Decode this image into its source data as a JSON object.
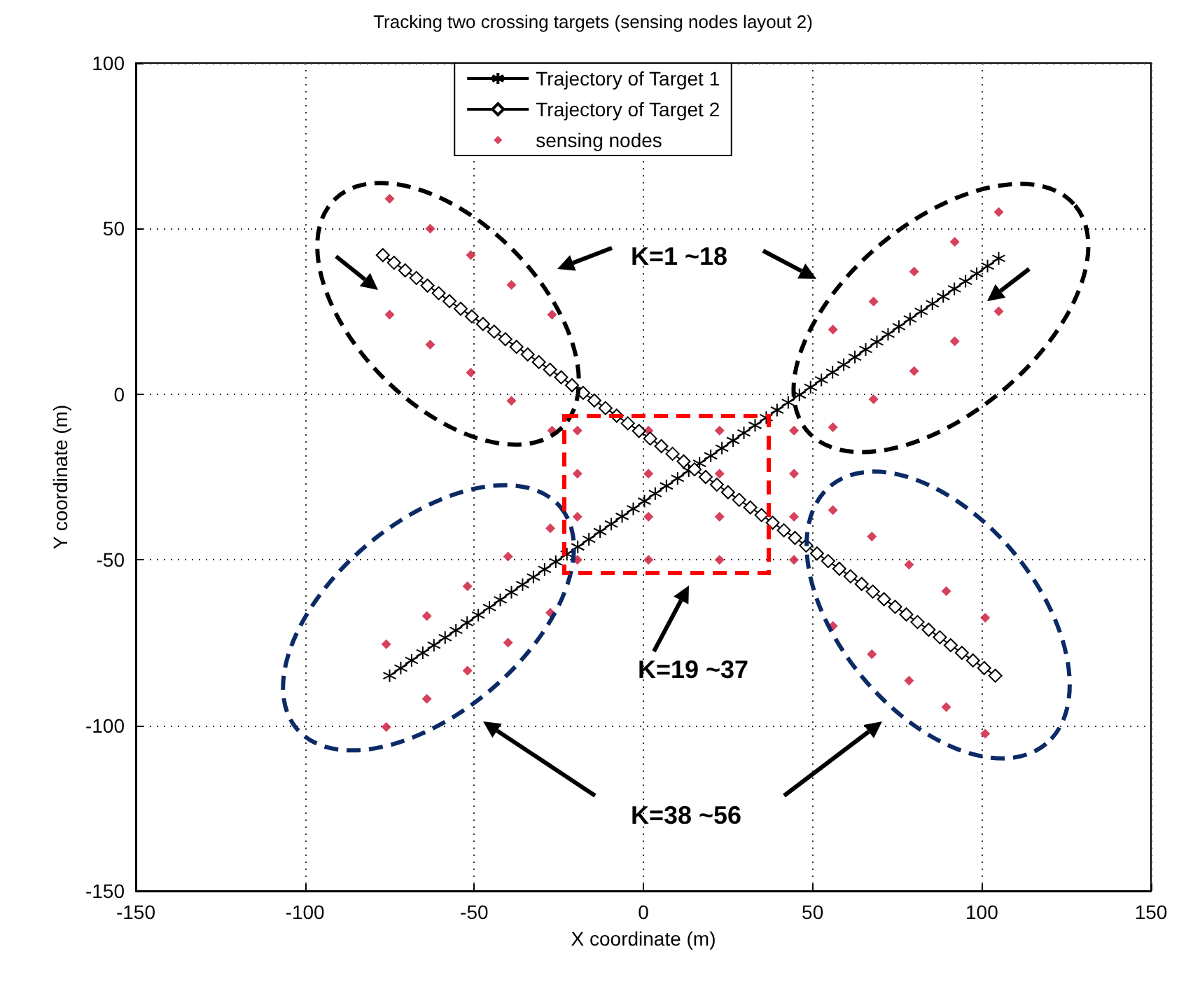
{
  "chart_data": {
    "type": "line",
    "title": "Tracking two crossing targets (sensing nodes layout 2)",
    "xlabel": "X coordinate (m)",
    "ylabel": "Y coordinate (m)",
    "xlim": [
      -150,
      150
    ],
    "xticks": [
      -150,
      -100,
      -50,
      0,
      50,
      100,
      150
    ],
    "ylim": [
      -150,
      100
    ],
    "yticks": [
      -150,
      -100,
      -50,
      0,
      50,
      100
    ],
    "grid": true,
    "legend": "top",
    "annotations": [
      "K=1 ~18",
      "K=19 ~37",
      "K=38 ~56"
    ],
    "series": [
      {
        "name": "Trajectory of Target 1",
        "color": "#000000",
        "marker": "cross",
        "line_style": "solid",
        "x": [
          -75,
          -71.7,
          -68.5,
          -65.2,
          -61.9,
          -58.6,
          -55.4,
          -52.1,
          -48.8,
          -45.5,
          -42.3,
          -39,
          -35.7,
          -32.5,
          -29.2,
          -25.9,
          -22.6,
          -19.4,
          -16.1,
          -12.8,
          -9.5,
          -6.3,
          -3,
          0.3,
          3.5,
          6.8,
          10.1,
          13.4,
          16.6,
          19.9,
          23.2,
          26.5,
          29.7,
          33,
          36.3,
          39.5,
          42.8,
          46.1,
          49.4,
          52.6,
          55.9,
          59.2,
          62.5,
          65.7,
          69,
          72.3,
          75.5,
          78.8,
          82.1,
          85.4,
          88.6,
          91.9,
          95.2,
          98.5,
          101.7,
          105
        ],
        "values": [
          -85,
          -82.7,
          -80.4,
          -78.1,
          -75.8,
          -73.5,
          -71.3,
          -69,
          -66.7,
          -64.4,
          -62.1,
          -59.8,
          -57.5,
          -55.2,
          -52.9,
          -50.6,
          -48.3,
          -46.1,
          -43.8,
          -41.5,
          -39.2,
          -36.9,
          -34.6,
          -32.3,
          -30,
          -27.7,
          -25.4,
          -23.1,
          -20.9,
          -18.6,
          -16.3,
          -14,
          -11.7,
          -9.4,
          -7.1,
          -4.8,
          -2.5,
          -0.2,
          2.1,
          4.3,
          6.6,
          8.9,
          11.2,
          13.5,
          15.8,
          18.1,
          20.4,
          22.7,
          25,
          27.3,
          29.5,
          31.8,
          34.1,
          36.4,
          38.7,
          41
        ]
      },
      {
        "name": "Trajectory of Target 2",
        "color": "#000000",
        "marker": "diamond",
        "line_style": "solid",
        "x": [
          -77,
          -73.7,
          -70.4,
          -67.1,
          -63.8,
          -60.5,
          -57.3,
          -54,
          -50.7,
          -47.4,
          -44.1,
          -40.8,
          -37.5,
          -34.2,
          -30.9,
          -27.6,
          -24.3,
          -21.1,
          -17.8,
          -14.5,
          -11.2,
          -7.9,
          -4.6,
          -1.3,
          2,
          5.3,
          8.6,
          11.9,
          15.1,
          18.4,
          21.7,
          25,
          28.3,
          31.6,
          34.9,
          38.2,
          41.5,
          44.8,
          48.1,
          51.3,
          54.6,
          57.9,
          61.2,
          64.5,
          67.8,
          71.1,
          74.4,
          77.7,
          81,
          84.3,
          87.6,
          90.8,
          94.1,
          97.4,
          100.7,
          104
        ],
        "values": [
          42,
          39.7,
          37.4,
          35.1,
          32.8,
          30.5,
          28.1,
          25.8,
          23.5,
          21.2,
          18.9,
          16.6,
          14.3,
          12,
          9.7,
          7.4,
          5.1,
          2.7,
          0.4,
          -1.9,
          -4.2,
          -6.5,
          -8.8,
          -11.1,
          -13.4,
          -15.7,
          -18,
          -20.3,
          -22.7,
          -25,
          -27.3,
          -29.6,
          -31.9,
          -34.2,
          -36.5,
          -38.8,
          -41.1,
          -43.4,
          -45.7,
          -48.1,
          -50.4,
          -52.7,
          -55,
          -57.3,
          -59.6,
          -61.9,
          -64.2,
          -66.5,
          -68.8,
          -71.1,
          -73.4,
          -75.8,
          -78.1,
          -80.4,
          -82.7,
          -85
        ]
      },
      {
        "name": "sensing nodes",
        "type": "scatter",
        "color": "#cc1133",
        "marker": "diamond",
        "x": [
          -75,
          -63,
          -51,
          -39,
          -27,
          -75,
          -63,
          -51,
          -39,
          -27,
          105,
          92,
          80,
          68,
          56,
          105,
          92,
          80,
          68,
          56,
          -27.5,
          -40,
          -52,
          -64,
          -76,
          -27.5,
          -40,
          -52,
          -64,
          -76,
          56,
          67.5,
          78.5,
          89.5,
          101,
          56,
          67.5,
          78.5,
          89.5,
          101,
          -19.5,
          1.5,
          22.5,
          44.5,
          -19.5,
          1.5,
          22.5,
          44.5,
          -19.5,
          1.5,
          22.5,
          44.5,
          -19.5,
          1.5,
          22.5,
          44.5
        ],
        "values": [
          59,
          50,
          42,
          33,
          24,
          24,
          15,
          6.5,
          -2,
          -11,
          55,
          46,
          37,
          28,
          19.5,
          25,
          16,
          7,
          -1.5,
          -10,
          -40.5,
          -49,
          -58,
          -67,
          -75.5,
          -66,
          -75,
          -83.5,
          -92,
          -100.5,
          -35,
          -43,
          -51.5,
          -59.5,
          -67.5,
          -70,
          -78.5,
          -86.5,
          -94.5,
          -102.5,
          -11,
          -11,
          -11,
          -11,
          -24,
          -24,
          -24,
          -24,
          -37,
          -37,
          -37,
          -37,
          -50,
          -50,
          -50,
          -50
        ]
      }
    ]
  }
}
